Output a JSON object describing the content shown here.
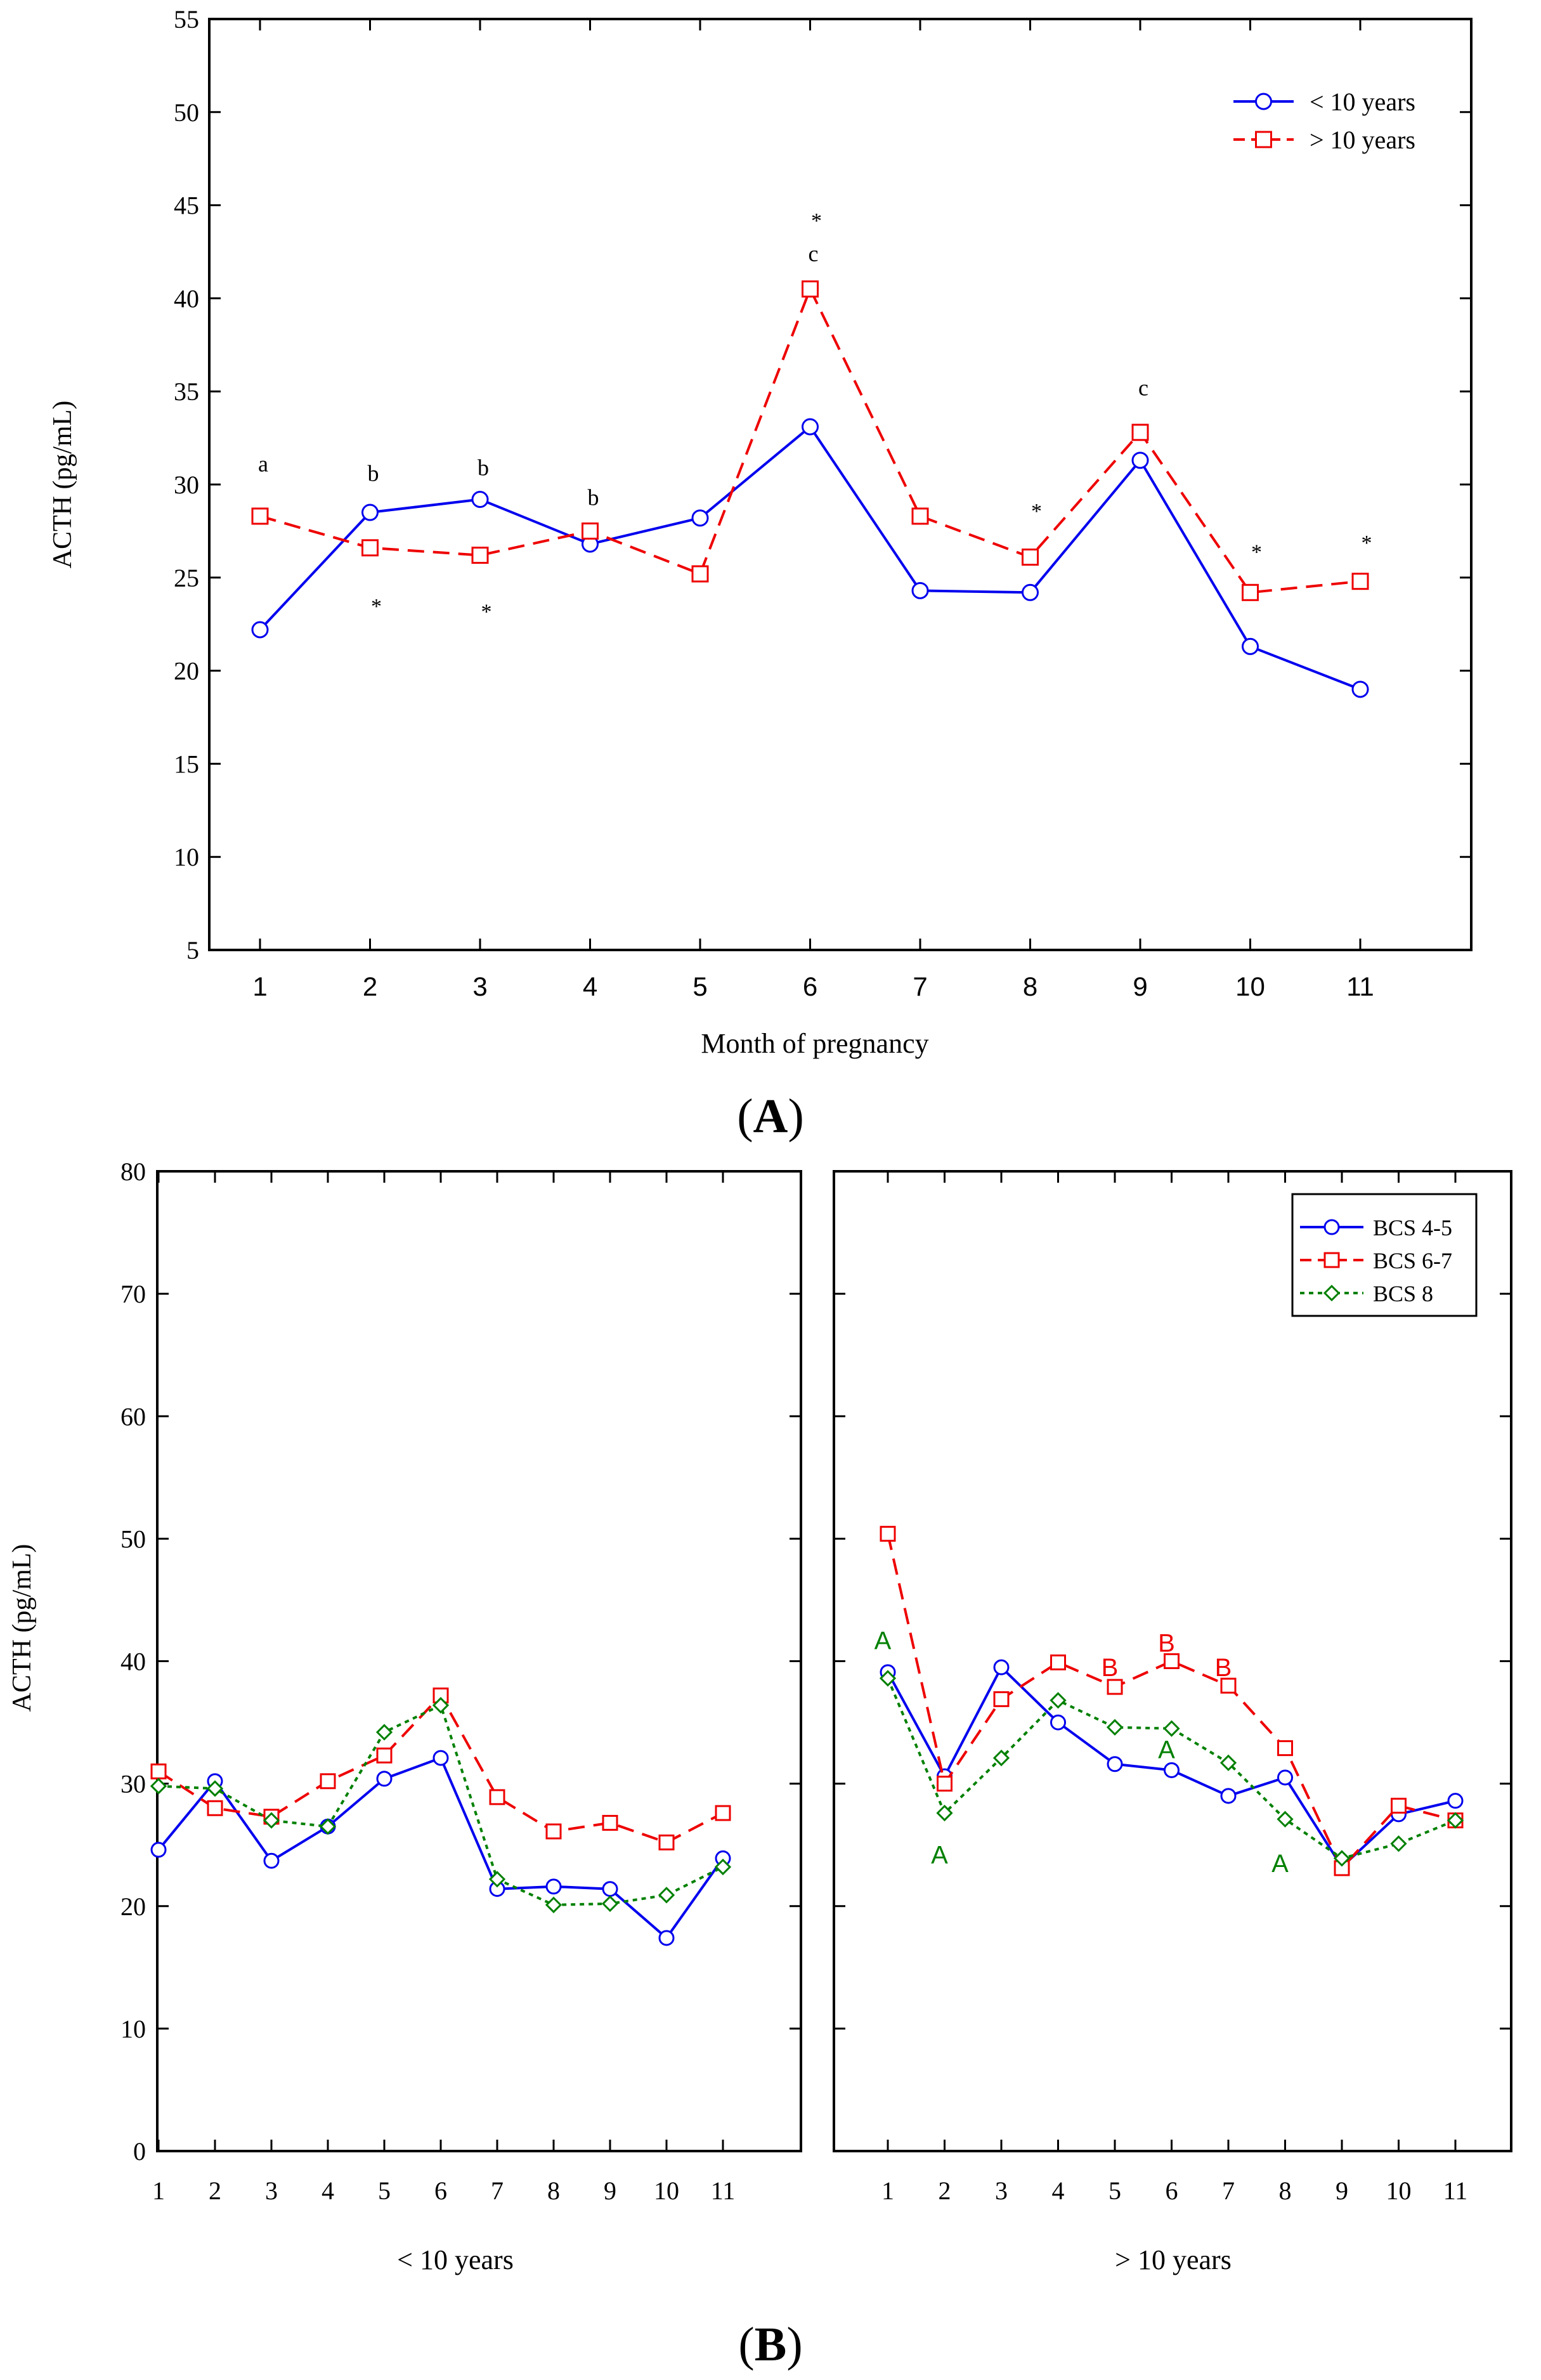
{
  "chart_data": [
    {
      "id": "A",
      "type": "line",
      "panel_label": "A",
      "xlabel": "Month of pregnancy",
      "ylabel": "ACTH (pg/mL)",
      "ylim": [
        5,
        55
      ],
      "yticks": [
        5,
        10,
        15,
        20,
        25,
        30,
        35,
        40,
        45,
        50,
        55
      ],
      "categories": [
        "1",
        "2",
        "3",
        "4",
        "5",
        "6",
        "7",
        "8",
        "9",
        "10",
        "11"
      ],
      "legend_position": "top-right",
      "series": [
        {
          "name": "< 10 years",
          "color": "#0000ee",
          "dash": "solid",
          "marker": "circle",
          "values": [
            22.2,
            28.5,
            29.2,
            26.8,
            28.2,
            33.1,
            24.3,
            24.2,
            31.3,
            21.3,
            19.0
          ]
        },
        {
          "name": "> 10 years",
          "color": "#ee0000",
          "dash": "dashed",
          "marker": "square",
          "values": [
            28.3,
            26.6,
            26.2,
            27.5,
            25.2,
            40.5,
            28.3,
            26.1,
            32.8,
            24.2,
            24.8
          ]
        }
      ],
      "annotations": [
        {
          "text": "a",
          "x": 1,
          "y": 31.1
        },
        {
          "text": "b",
          "x": 2,
          "y": 30.6
        },
        {
          "text": "b",
          "x": 3,
          "y": 30.9
        },
        {
          "text": "b",
          "x": 4,
          "y": 29.3
        },
        {
          "text": "c",
          "x": 6,
          "y": 42.4
        },
        {
          "text": "c",
          "x": 9,
          "y": 35.2
        },
        {
          "text": "*",
          "x": 2,
          "y": 23.5
        },
        {
          "text": "*",
          "x": 3,
          "y": 23.2
        },
        {
          "text": "*",
          "x": 6,
          "y": 44.2
        },
        {
          "text": "*",
          "x": 8,
          "y": 28.6
        },
        {
          "text": "*",
          "x": 10,
          "y": 26.4
        },
        {
          "text": "*",
          "x": 11,
          "y": 26.9
        }
      ]
    },
    {
      "id": "B",
      "type": "line",
      "panel_label": "B",
      "ylabel": "ACTH (pg/mL)",
      "ylim": [
        0,
        80
      ],
      "yticks": [
        0,
        10,
        20,
        30,
        40,
        50,
        60,
        70,
        80
      ],
      "categories": [
        "1",
        "2",
        "3",
        "4",
        "5",
        "6",
        "7",
        "8",
        "9",
        "10",
        "11"
      ],
      "legend_position": "top-right",
      "legend": [
        "BCS 4-5",
        "BCS 6-7",
        "BCS 8"
      ],
      "subplots": [
        {
          "xlabel": "< 10 years",
          "series": [
            {
              "name": "BCS 4-5",
              "color": "#0000ee",
              "dash": "solid",
              "marker": "circle",
              "values": [
                24.6,
                30.2,
                23.7,
                26.5,
                30.4,
                32.1,
                21.4,
                21.6,
                21.4,
                17.4,
                23.9
              ]
            },
            {
              "name": "BCS 6-7",
              "color": "#ee0000",
              "dash": "dashed",
              "marker": "square",
              "values": [
                31.0,
                28.0,
                27.3,
                30.2,
                32.3,
                37.2,
                28.9,
                26.1,
                26.8,
                25.2,
                27.6
              ]
            },
            {
              "name": "BCS 8",
              "color": "#008000",
              "dash": "dotted",
              "marker": "diamond",
              "values": [
                29.8,
                29.6,
                27.0,
                26.5,
                34.2,
                36.4,
                22.2,
                20.1,
                20.2,
                20.9,
                23.2
              ]
            }
          ],
          "annotations": []
        },
        {
          "xlabel": "> 10 years",
          "series": [
            {
              "name": "BCS 4-5",
              "color": "#0000ee",
              "dash": "solid",
              "marker": "circle",
              "values": [
                39.1,
                30.6,
                39.5,
                35.0,
                31.6,
                31.1,
                29.0,
                30.5,
                23.2,
                27.5,
                28.6
              ]
            },
            {
              "name": "BCS 6-7",
              "color": "#ee0000",
              "dash": "dashed",
              "marker": "square",
              "values": [
                50.4,
                30.0,
                36.9,
                39.9,
                37.9,
                40.0,
                38.0,
                32.9,
                23.1,
                28.2,
                27.0
              ]
            },
            {
              "name": "BCS 8",
              "color": "#008000",
              "dash": "dotted",
              "marker": "diamond",
              "values": [
                38.6,
                27.6,
                32.1,
                36.8,
                34.6,
                34.5,
                31.7,
                27.1,
                23.9,
                25.1,
                27.0
              ]
            }
          ],
          "annotations": [
            {
              "text": "A",
              "x": 1,
              "y": 41.7,
              "color": "#008000"
            },
            {
              "text": "A",
              "x": 2,
              "y": 24.2,
              "color": "#008000"
            },
            {
              "text": "A",
              "x": 6,
              "y": 32.8,
              "color": "#008000"
            },
            {
              "text": "A",
              "x": 8,
              "y": 23.5,
              "color": "#008000"
            },
            {
              "text": "B",
              "x": 5,
              "y": 39.5,
              "color": "#ee0000"
            },
            {
              "text": "B",
              "x": 6,
              "y": 41.5,
              "color": "#ee0000"
            },
            {
              "text": "B",
              "x": 7,
              "y": 39.5,
              "color": "#ee0000"
            }
          ]
        }
      ]
    }
  ]
}
